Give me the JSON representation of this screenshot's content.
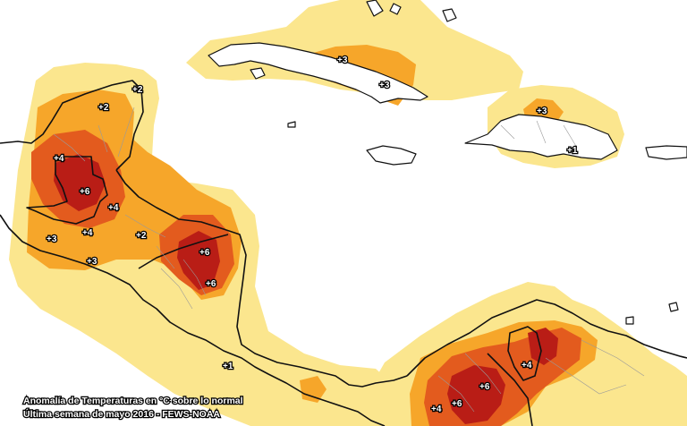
{
  "map": {
    "caption_line1": "Anomalía de Temperaturas en °C sobre lo normal",
    "caption_line2": "Última semana de mayo 2016 - FEWS-NOAA",
    "legend_colors": {
      "plus1": "#fbe68e",
      "plus2": "#f6a62a",
      "plus3": "#f4a020",
      "plus4": "#e35b1e",
      "plus6": "#b91d16"
    },
    "anomaly_labels": [
      {
        "id": "belize-north",
        "text": "+2"
      },
      {
        "id": "yucatan",
        "text": "+2"
      },
      {
        "id": "tabasco",
        "text": "+4"
      },
      {
        "id": "guatemala-peten",
        "text": "+6"
      },
      {
        "id": "guatemala-east",
        "text": "+4"
      },
      {
        "id": "guatemala-west",
        "text": "+4"
      },
      {
        "id": "chiapas",
        "text": "+3"
      },
      {
        "id": "honduras-west",
        "text": "+2"
      },
      {
        "id": "el-salvador",
        "text": "+3"
      },
      {
        "id": "honduras-east",
        "text": "+6"
      },
      {
        "id": "nicaragua",
        "text": "+6"
      },
      {
        "id": "costa-rica",
        "text": "+1"
      },
      {
        "id": "cuba-west",
        "text": "+3"
      },
      {
        "id": "cuba-east",
        "text": "+3"
      },
      {
        "id": "hispaniola-north",
        "text": "+3"
      },
      {
        "id": "hispaniola-south",
        "text": "+1"
      },
      {
        "id": "colombia-north",
        "text": "+6"
      },
      {
        "id": "colombia-center",
        "text": "+6"
      },
      {
        "id": "colombia-west",
        "text": "+4"
      },
      {
        "id": "venezuela-west",
        "text": "+4"
      }
    ]
  }
}
